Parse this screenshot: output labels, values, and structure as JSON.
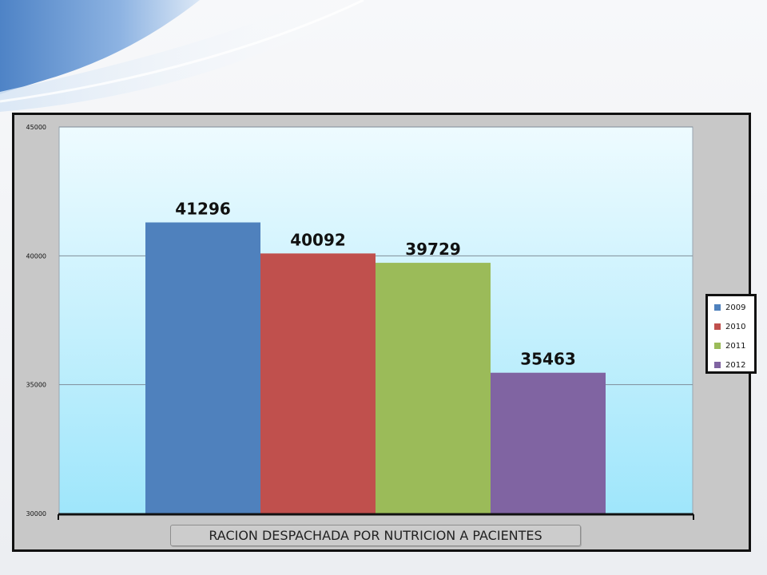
{
  "chart_data": {
    "type": "bar",
    "categories": [
      "RACION DESPACHADA POR NUTRICION A PACIENTES"
    ],
    "series": [
      {
        "name": "2009",
        "values": [
          41296
        ]
      },
      {
        "name": "2010",
        "values": [
          40092
        ]
      },
      {
        "name": "2011",
        "values": [
          39729
        ]
      },
      {
        "name": "2012",
        "values": [
          35463
        ]
      }
    ],
    "title": "",
    "xlabel": "",
    "ylabel": "",
    "ylim": [
      30000,
      45000
    ],
    "yticks": [
      "30000",
      "35000",
      "40000",
      "45000"
    ],
    "data_labels": [
      "41296",
      "40092",
      "39729",
      "35463"
    ],
    "grid": true,
    "legend_position": "right",
    "colors": {
      "2009": "#4f81bd",
      "2010": "#c0504d",
      "2011": "#9bbb59",
      "2012": "#8064a2",
      "plot_background_top": "#eefbff",
      "plot_background_bottom": "#9fe6fb",
      "chart_background": "#c8c8c8",
      "slide_accent": "#4a82c4"
    }
  }
}
